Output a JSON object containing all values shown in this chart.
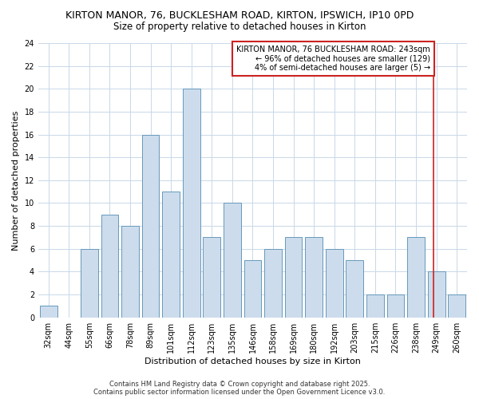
{
  "title": "KIRTON MANOR, 76, BUCKLESHAM ROAD, KIRTON, IPSWICH, IP10 0PD",
  "subtitle": "Size of property relative to detached houses in Kirton",
  "xlabel": "Distribution of detached houses by size in Kirton",
  "ylabel": "Number of detached properties",
  "bar_color": "#ccdcec",
  "bar_edge_color": "#6699bb",
  "categories": [
    "32sqm",
    "44sqm",
    "55sqm",
    "66sqm",
    "78sqm",
    "89sqm",
    "101sqm",
    "112sqm",
    "123sqm",
    "135sqm",
    "146sqm",
    "158sqm",
    "169sqm",
    "180sqm",
    "192sqm",
    "203sqm",
    "215sqm",
    "226sqm",
    "238sqm",
    "249sqm",
    "260sqm"
  ],
  "values": [
    1,
    0,
    6,
    9,
    8,
    16,
    11,
    20,
    7,
    10,
    5,
    6,
    7,
    7,
    6,
    5,
    2,
    2,
    7,
    4,
    2
  ],
  "ylim": [
    0,
    24
  ],
  "yticks": [
    0,
    2,
    4,
    6,
    8,
    10,
    12,
    14,
    16,
    18,
    20,
    22,
    24
  ],
  "grid_color": "#c8d8e8",
  "annotation_text": "KIRTON MANOR, 76 BUCKLESHAM ROAD: 243sqm\n← 96% of detached houses are smaller (129)\n4% of semi-detached houses are larger (5) →",
  "annotation_box_color": "#ffffff",
  "annotation_border_color": "#cc2222",
  "vline_color": "#cc2222",
  "vline_x": 18.85,
  "footer_line1": "Contains HM Land Registry data © Crown copyright and database right 2025.",
  "footer_line2": "Contains public sector information licensed under the Open Government Licence v3.0.",
  "background_color": "#ffffff",
  "fig_width": 6.0,
  "fig_height": 5.0,
  "title_fontsize": 9,
  "subtitle_fontsize": 8.5,
  "axis_label_fontsize": 8,
  "tick_fontsize": 7,
  "footer_fontsize": 6,
  "annotation_fontsize": 7
}
